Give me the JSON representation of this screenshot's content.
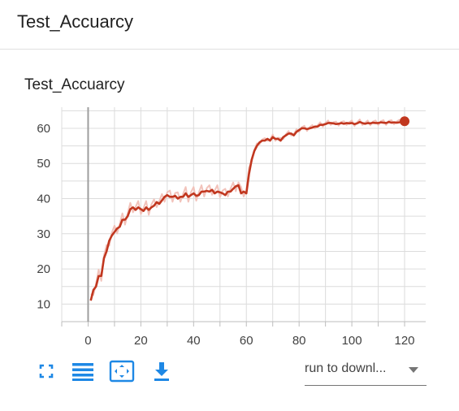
{
  "card": {
    "title": "Test_Accuarcy"
  },
  "chart_data": {
    "type": "line",
    "title": "Test_Accuarcy",
    "xlabel": "",
    "ylabel": "",
    "xlim": [
      -10,
      128
    ],
    "ylim": [
      5,
      66
    ],
    "x_ticks": [
      0,
      20,
      40,
      60,
      80,
      100,
      120
    ],
    "y_ticks": [
      10,
      20,
      30,
      40,
      50,
      60
    ],
    "grid": true,
    "series": [
      {
        "color": "#c1371f",
        "raw_color": "#f2c3bb",
        "smoothed": true,
        "x": [
          1,
          2,
          3,
          4,
          5,
          6,
          7,
          8,
          9,
          10,
          11,
          12,
          13,
          14,
          15,
          16,
          17,
          18,
          19,
          20,
          21,
          22,
          23,
          24,
          25,
          26,
          27,
          28,
          29,
          30,
          31,
          32,
          33,
          34,
          35,
          36,
          37,
          38,
          39,
          40,
          41,
          42,
          43,
          44,
          45,
          46,
          47,
          48,
          49,
          50,
          51,
          52,
          53,
          54,
          55,
          56,
          57,
          58,
          59,
          60,
          61,
          62,
          63,
          64,
          65,
          66,
          67,
          68,
          69,
          70,
          71,
          72,
          73,
          74,
          75,
          76,
          77,
          78,
          79,
          80,
          81,
          82,
          83,
          84,
          85,
          86,
          87,
          88,
          89,
          90,
          91,
          92,
          93,
          94,
          95,
          96,
          97,
          98,
          99,
          100,
          101,
          102,
          103,
          104,
          105,
          106,
          107,
          108,
          109,
          110,
          111,
          112,
          113,
          114,
          115,
          116,
          117,
          118,
          119,
          120
        ],
        "values": [
          11,
          14,
          15,
          18,
          18,
          23,
          25,
          28,
          29.5,
          30.5,
          31.5,
          32,
          34,
          34,
          35,
          37,
          37.5,
          36.8,
          37.5,
          37,
          36.5,
          37.5,
          36.8,
          37.5,
          38,
          39,
          38.5,
          39.5,
          40.5,
          41,
          40.5,
          40.5,
          40.8,
          40,
          40.5,
          40.5,
          41.5,
          40.5,
          41,
          41.5,
          40.8,
          41,
          42,
          42,
          42.2,
          42,
          42.5,
          41.5,
          42,
          41.8,
          41.5,
          41,
          42,
          42,
          42.8,
          43.5,
          43.8,
          41.5,
          42,
          41.5,
          47,
          51,
          53.5,
          55,
          56,
          56.5,
          56.5,
          57,
          56.5,
          57.5,
          57,
          57,
          56.5,
          57.5,
          58,
          58.5,
          58.5,
          58,
          59,
          59.5,
          60,
          60,
          59.8,
          60,
          60.2,
          60.5,
          60.5,
          61,
          61,
          61.2,
          61.5,
          61.5,
          61.4,
          61.2,
          61.3,
          61.5,
          61.3,
          61.5,
          61.4,
          61.5,
          61.2,
          61.4,
          61.8,
          61.5,
          61.3,
          61.5,
          61.4,
          61.6,
          61.5,
          61.5,
          61.7,
          61.6,
          61.5,
          61.8,
          61.6,
          61.7,
          61.6,
          61.7,
          61.9,
          62
        ]
      }
    ]
  },
  "toolbar": {
    "buttons": [
      {
        "icon": "fullscreen-icon"
      },
      {
        "icon": "data-table-icon"
      },
      {
        "icon": "fit-domain-icon"
      },
      {
        "icon": "download-icon"
      }
    ]
  },
  "run_select": {
    "value": "run to downl..."
  },
  "colors": {
    "accent": "#1e88e5",
    "line": "#c1371f",
    "raw_line": "#f2c3bb"
  }
}
